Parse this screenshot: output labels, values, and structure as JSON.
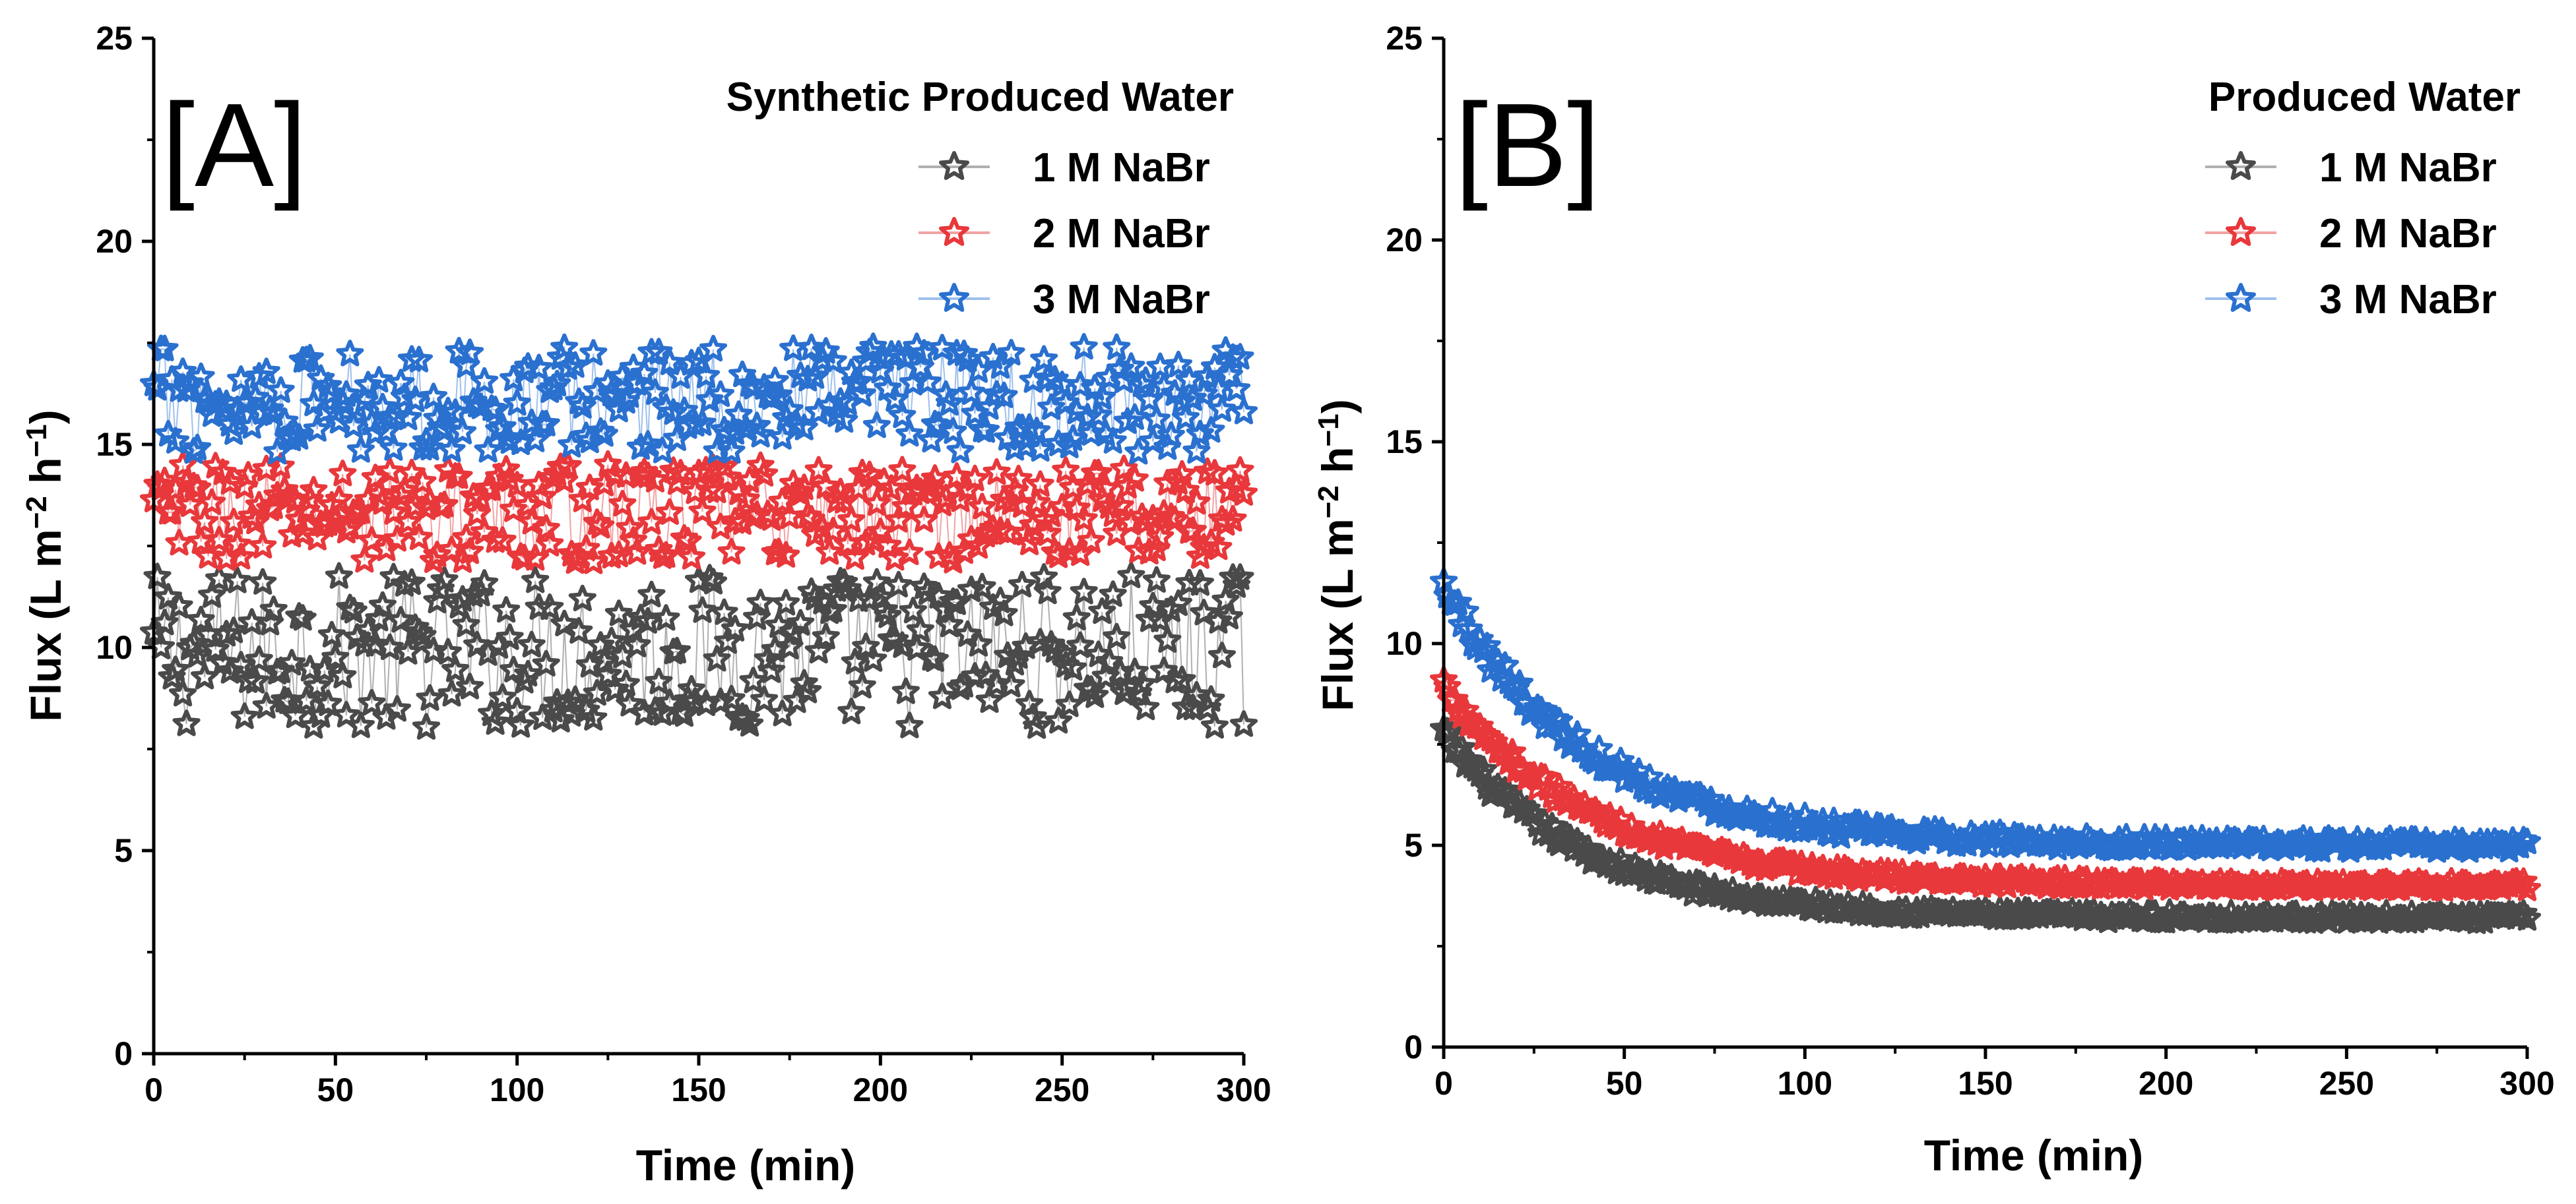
{
  "colors": {
    "series1": "#4a4a4a",
    "series2": "#e8383b",
    "series3": "#2a70cf"
  },
  "chart_data": [
    {
      "type": "scatter",
      "panel_label": "[A]",
      "legend_title": "Synthetic Produced Water",
      "xlabel": "Time (min)",
      "ylabel_main": "Flux (L m",
      "ylabel_sup1": "−2",
      "ylabel_mid": " h",
      "ylabel_sup2": "−1",
      "ylabel_end": ")",
      "xlim": [
        0,
        300
      ],
      "ylim": [
        0,
        25
      ],
      "x_ticks": [
        "0",
        "50",
        "100",
        "150",
        "200",
        "250",
        "300"
      ],
      "y_ticks": [
        "0",
        "5",
        "10",
        "15",
        "20",
        "25"
      ],
      "x": {
        "start": 0,
        "end": 300,
        "step": 1
      },
      "series": [
        {
          "name": "1 M NaBr",
          "model": "noisy",
          "mean": 9.9,
          "spread": 1.9
        },
        {
          "name": "2 M NaBr",
          "model": "noisy",
          "mean": 13.3,
          "spread": 1.2
        },
        {
          "name": "3 M NaBr",
          "model": "noisy",
          "mean": 16.1,
          "spread": 1.3
        }
      ]
    },
    {
      "type": "scatter",
      "panel_label": "[B]",
      "legend_title": "Produced Water",
      "xlabel": "Time (min)",
      "ylabel_main": "Flux (L m",
      "ylabel_sup1": "−2",
      "ylabel_mid": " h",
      "ylabel_sup2": "−1",
      "ylabel_end": ")",
      "xlim": [
        0,
        300
      ],
      "ylim": [
        0,
        25
      ],
      "x_ticks": [
        "0",
        "50",
        "100",
        "150",
        "200",
        "250",
        "300"
      ],
      "y_ticks": [
        "0",
        "5",
        "10",
        "15",
        "20",
        "25"
      ],
      "x": {
        "start": 0,
        "end": 300,
        "step": 1
      },
      "series": [
        {
          "name": "1 M NaBr",
          "model": "decay",
          "start_value": 7.8,
          "plateau": 3.2,
          "tau_min": 38,
          "spread": 0.25
        },
        {
          "name": "2 M NaBr",
          "model": "decay",
          "start_value": 9.0,
          "plateau": 4.0,
          "tau_min": 40,
          "spread": 0.25
        },
        {
          "name": "3 M NaBr",
          "model": "decay",
          "start_value": 11.4,
          "plateau": 5.0,
          "tau_min": 40,
          "spread": 0.35
        }
      ]
    }
  ]
}
